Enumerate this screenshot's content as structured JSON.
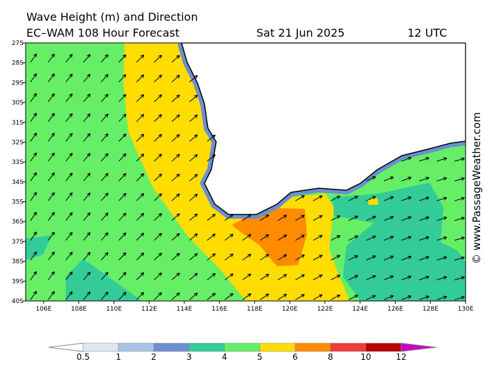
{
  "header": {
    "title": "Wave Height (m) and Direction",
    "model": "EC–WAM 108 Hour Forecast",
    "date": "Sat 21 Jun 2025",
    "time": "12 UTC"
  },
  "latitude_labels": [
    "27S",
    "28S",
    "29S",
    "30S",
    "31S",
    "32S",
    "33S",
    "34S",
    "35S",
    "36S",
    "37S",
    "38S",
    "39S",
    "40S"
  ],
  "longitude_labels": [
    "106E",
    "108E",
    "110E",
    "112E",
    "114E",
    "116E",
    "118E",
    "120E",
    "122E",
    "124E",
    "126E",
    "128E",
    "130E"
  ],
  "colorbar": {
    "labels": [
      0.5,
      1,
      2,
      3,
      4,
      5,
      6,
      8,
      10,
      12
    ],
    "colors": [
      "#ffffff",
      "#dde8f4",
      "#a9c3e2",
      "#6c8fcf",
      "#33cc99",
      "#66ee66",
      "#ffdd00",
      "#ff8c00",
      "#ee3b3b",
      "#bb0000",
      "#cc00cc"
    ]
  },
  "watermark": "© www.PassageWeather.com"
}
